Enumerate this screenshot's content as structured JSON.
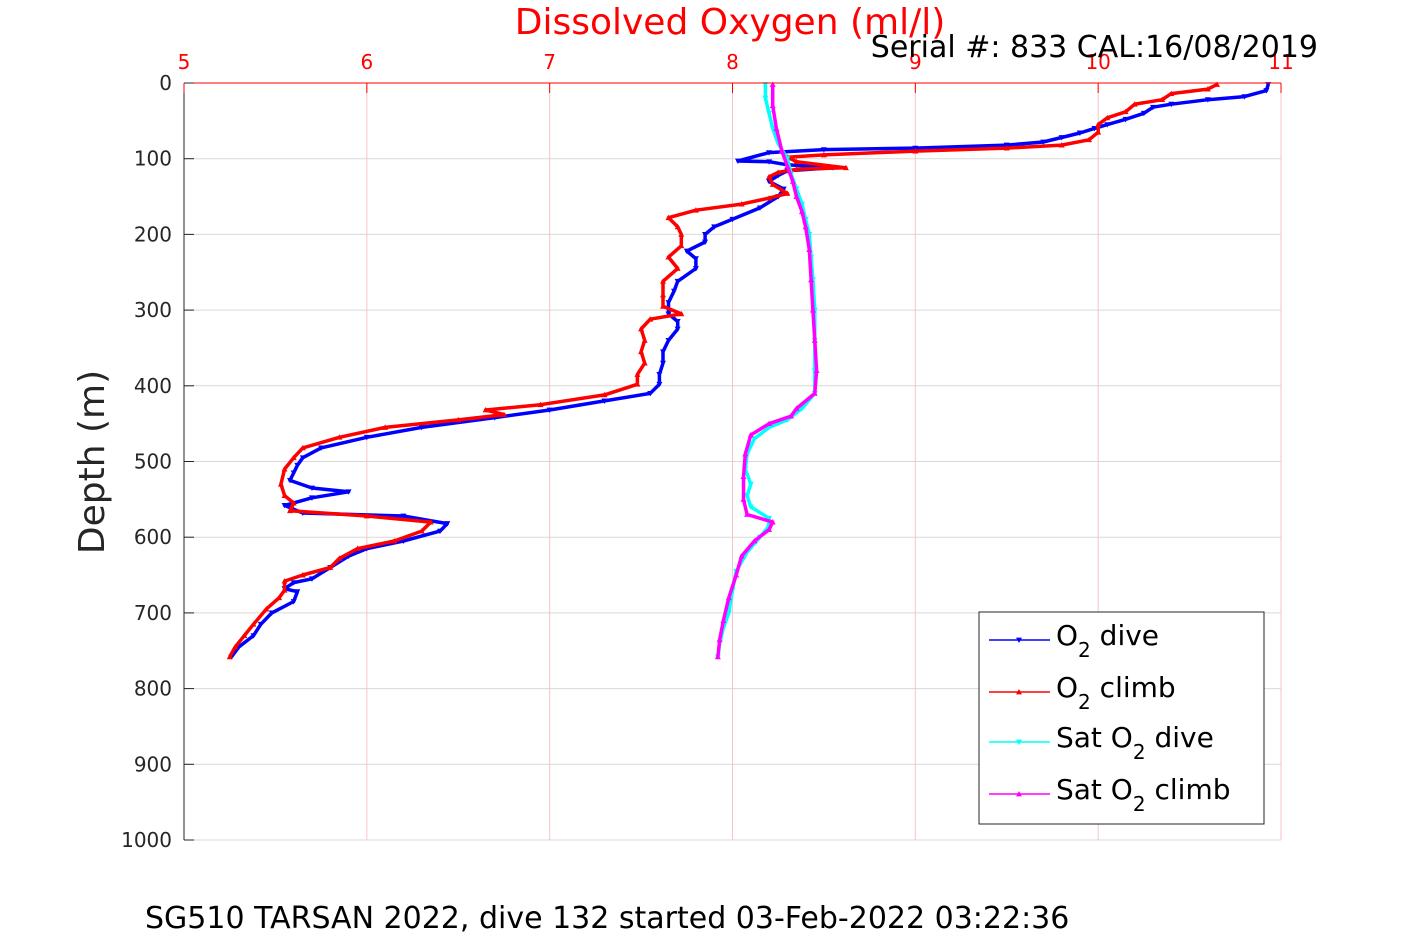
{
  "chart_data": {
    "type": "line",
    "title": "Dissolved Oxygen (ml/l)",
    "subtitle": "Serial #: 833  CAL:16/08/2019",
    "caption": "SG510 TARSAN 2022, dive 132 started 03-Feb-2022 03:22:36",
    "xlabel": "",
    "ylabel": "Depth (m)",
    "xlim": [
      5,
      11
    ],
    "ylim": [
      0,
      1000
    ],
    "y_reversed": true,
    "x_axis_position": "top",
    "xticks": [
      5,
      6,
      7,
      8,
      9,
      10,
      11
    ],
    "yticks": [
      0,
      100,
      200,
      300,
      400,
      500,
      600,
      700,
      800,
      900,
      1000
    ],
    "grid": true,
    "legend_position": "bottom-right",
    "colors": {
      "title": "#ff0000",
      "x_axis": "#ff0000",
      "grid": "#d9d9d9",
      "x_grid": "#f5c4c4"
    },
    "series": [
      {
        "name": "O2 dive",
        "legend_label": {
          "pre": "O",
          "sub": "2",
          "post": " dive"
        },
        "color": "#0000ff",
        "marker": "triangle-down",
        "points": [
          [
            10.93,
            2
          ],
          [
            10.92,
            10
          ],
          [
            10.8,
            18
          ],
          [
            10.6,
            22
          ],
          [
            10.4,
            28
          ],
          [
            10.3,
            32
          ],
          [
            10.25,
            40
          ],
          [
            10.15,
            48
          ],
          [
            10.05,
            55
          ],
          [
            9.98,
            60
          ],
          [
            9.9,
            66
          ],
          [
            9.8,
            72
          ],
          [
            9.7,
            78
          ],
          [
            9.5,
            82
          ],
          [
            9.0,
            86
          ],
          [
            8.5,
            88
          ],
          [
            8.2,
            92
          ],
          [
            8.03,
            103
          ],
          [
            8.2,
            104
          ],
          [
            8.3,
            108
          ],
          [
            8.55,
            112
          ],
          [
            8.3,
            116
          ],
          [
            8.25,
            122
          ],
          [
            8.2,
            130
          ],
          [
            8.28,
            140
          ],
          [
            8.25,
            150
          ],
          [
            8.15,
            165
          ],
          [
            8.0,
            180
          ],
          [
            7.9,
            190
          ],
          [
            7.85,
            200
          ],
          [
            7.85,
            210
          ],
          [
            7.75,
            222
          ],
          [
            7.8,
            232
          ],
          [
            7.8,
            245
          ],
          [
            7.7,
            262
          ],
          [
            7.68,
            275
          ],
          [
            7.65,
            290
          ],
          [
            7.65,
            305
          ],
          [
            7.7,
            315
          ],
          [
            7.7,
            325
          ],
          [
            7.65,
            340
          ],
          [
            7.62,
            355
          ],
          [
            7.62,
            370
          ],
          [
            7.6,
            385
          ],
          [
            7.6,
            398
          ],
          [
            7.55,
            410
          ],
          [
            7.3,
            420
          ],
          [
            7.0,
            432
          ],
          [
            6.7,
            442
          ],
          [
            6.3,
            455
          ],
          [
            6.0,
            468
          ],
          [
            5.75,
            482
          ],
          [
            5.65,
            495
          ],
          [
            5.62,
            505
          ],
          [
            5.6,
            515
          ],
          [
            5.58,
            525
          ],
          [
            5.7,
            535
          ],
          [
            5.9,
            540
          ],
          [
            5.7,
            548
          ],
          [
            5.55,
            558
          ],
          [
            5.65,
            568
          ],
          [
            6.2,
            572
          ],
          [
            6.44,
            582
          ],
          [
            6.4,
            592
          ],
          [
            6.2,
            605
          ],
          [
            6.0,
            615
          ],
          [
            5.9,
            625
          ],
          [
            5.8,
            640
          ],
          [
            5.7,
            655
          ],
          [
            5.6,
            660
          ],
          [
            5.55,
            668
          ],
          [
            5.62,
            672
          ],
          [
            5.6,
            685
          ],
          [
            5.48,
            700
          ],
          [
            5.42,
            715
          ],
          [
            5.38,
            730
          ],
          [
            5.3,
            745
          ],
          [
            5.26,
            758
          ]
        ]
      },
      {
        "name": "O2 climb",
        "legend_label": {
          "pre": "O",
          "sub": "2",
          "post": " climb"
        },
        "color": "#ff0000",
        "marker": "triangle-up",
        "points": [
          [
            10.65,
            2
          ],
          [
            10.6,
            8
          ],
          [
            10.4,
            14
          ],
          [
            10.35,
            22
          ],
          [
            10.2,
            28
          ],
          [
            10.15,
            38
          ],
          [
            10.05,
            46
          ],
          [
            10.0,
            55
          ],
          [
            10.0,
            65
          ],
          [
            9.95,
            75
          ],
          [
            9.8,
            82
          ],
          [
            9.5,
            86
          ],
          [
            9.0,
            90
          ],
          [
            8.5,
            95
          ],
          [
            8.3,
            98
          ],
          [
            8.35,
            104
          ],
          [
            8.62,
            112
          ],
          [
            8.35,
            114
          ],
          [
            8.25,
            118
          ],
          [
            8.2,
            124
          ],
          [
            8.22,
            134
          ],
          [
            8.3,
            146
          ],
          [
            8.2,
            152
          ],
          [
            8.05,
            160
          ],
          [
            7.8,
            168
          ],
          [
            7.65,
            178
          ],
          [
            7.7,
            190
          ],
          [
            7.72,
            200
          ],
          [
            7.72,
            215
          ],
          [
            7.65,
            230
          ],
          [
            7.7,
            245
          ],
          [
            7.62,
            262
          ],
          [
            7.62,
            280
          ],
          [
            7.62,
            295
          ],
          [
            7.72,
            305
          ],
          [
            7.55,
            312
          ],
          [
            7.5,
            325
          ],
          [
            7.52,
            340
          ],
          [
            7.5,
            355
          ],
          [
            7.52,
            370
          ],
          [
            7.48,
            385
          ],
          [
            7.48,
            398
          ],
          [
            7.3,
            412
          ],
          [
            6.95,
            425
          ],
          [
            6.65,
            432
          ],
          [
            6.75,
            438
          ],
          [
            6.5,
            445
          ],
          [
            6.1,
            455
          ],
          [
            5.85,
            468
          ],
          [
            5.65,
            482
          ],
          [
            5.6,
            495
          ],
          [
            5.55,
            510
          ],
          [
            5.53,
            530
          ],
          [
            5.55,
            545
          ],
          [
            5.6,
            555
          ],
          [
            5.58,
            565
          ],
          [
            6.0,
            572
          ],
          [
            6.35,
            580
          ],
          [
            6.3,
            592
          ],
          [
            6.15,
            605
          ],
          [
            5.95,
            615
          ],
          [
            5.85,
            628
          ],
          [
            5.8,
            640
          ],
          [
            5.65,
            650
          ],
          [
            5.55,
            658
          ],
          [
            5.55,
            670
          ],
          [
            5.52,
            680
          ],
          [
            5.45,
            695
          ],
          [
            5.38,
            715
          ],
          [
            5.33,
            730
          ],
          [
            5.28,
            745
          ],
          [
            5.25,
            758
          ]
        ]
      },
      {
        "name": "Sat O2 dive",
        "legend_label": {
          "pre": "Sat O",
          "sub": "2",
          "post": " dive"
        },
        "color": "#00ffff",
        "marker": "triangle-down",
        "points": [
          [
            8.18,
            2
          ],
          [
            8.18,
            20
          ],
          [
            8.2,
            40
          ],
          [
            8.22,
            60
          ],
          [
            8.25,
            80
          ],
          [
            8.3,
            100
          ],
          [
            8.32,
            120
          ],
          [
            8.35,
            140
          ],
          [
            8.38,
            160
          ],
          [
            8.4,
            180
          ],
          [
            8.42,
            200
          ],
          [
            8.43,
            230
          ],
          [
            8.44,
            260
          ],
          [
            8.45,
            300
          ],
          [
            8.45,
            340
          ],
          [
            8.45,
            380
          ],
          [
            8.45,
            410
          ],
          [
            8.38,
            430
          ],
          [
            8.3,
            445
          ],
          [
            8.2,
            455
          ],
          [
            8.12,
            470
          ],
          [
            8.08,
            490
          ],
          [
            8.07,
            510
          ],
          [
            8.1,
            530
          ],
          [
            8.08,
            545
          ],
          [
            8.1,
            560
          ],
          [
            8.2,
            575
          ],
          [
            8.2,
            585
          ],
          [
            8.15,
            600
          ],
          [
            8.08,
            620
          ],
          [
            8.02,
            645
          ],
          [
            8.0,
            670
          ],
          [
            7.98,
            700
          ],
          [
            7.95,
            720
          ],
          [
            7.93,
            740
          ],
          [
            7.92,
            758
          ]
        ]
      },
      {
        "name": "Sat O2 climb",
        "legend_label": {
          "pre": "Sat O",
          "sub": "2",
          "post": " climb"
        },
        "color": "#ff00ff",
        "marker": "triangle-up",
        "points": [
          [
            8.22,
            2
          ],
          [
            8.22,
            30
          ],
          [
            8.24,
            60
          ],
          [
            8.27,
            90
          ],
          [
            8.3,
            110
          ],
          [
            8.33,
            130
          ],
          [
            8.35,
            150
          ],
          [
            8.38,
            170
          ],
          [
            8.4,
            190
          ],
          [
            8.42,
            220
          ],
          [
            8.43,
            260
          ],
          [
            8.44,
            300
          ],
          [
            8.45,
            340
          ],
          [
            8.46,
            380
          ],
          [
            8.45,
            410
          ],
          [
            8.35,
            430
          ],
          [
            8.32,
            440
          ],
          [
            8.2,
            450
          ],
          [
            8.1,
            465
          ],
          [
            8.07,
            490
          ],
          [
            8.06,
            520
          ],
          [
            8.06,
            550
          ],
          [
            8.08,
            570
          ],
          [
            8.22,
            580
          ],
          [
            8.2,
            590
          ],
          [
            8.12,
            605
          ],
          [
            8.05,
            625
          ],
          [
            8.02,
            650
          ],
          [
            7.98,
            680
          ],
          [
            7.95,
            710
          ],
          [
            7.93,
            735
          ],
          [
            7.92,
            758
          ]
        ]
      }
    ]
  }
}
